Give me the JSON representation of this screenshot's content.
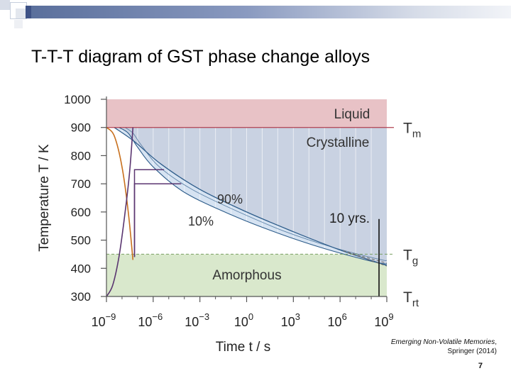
{
  "slide": {
    "title": "T-T-T diagram of GST phase change alloys",
    "citation_title": "Emerging Non-Volatile Memories",
    "citation_rest": ", Springer (2014)",
    "page_number": "7"
  },
  "colors": {
    "liquid": "#e8c2c6",
    "crystalline": "#c9d2e2",
    "crystalline_band": "#d6e3f2",
    "amorphous": "#d9e8cc",
    "tm_line": "#b04050",
    "quench_orange": "#c8701e",
    "quench_purple": "#5a3570",
    "curve_blue": "#2d5c8a",
    "axis": "#555555",
    "title_bar": "#6a7ea8"
  },
  "chart_data": {
    "type": "area",
    "xlabel": "Time t / s",
    "ylabel": "Temperature T / K",
    "xscale": "log",
    "xlim": [
      -9,
      9
    ],
    "ylim": [
      300,
      1000
    ],
    "x_ticks": [
      {
        "exp": -9,
        "base": "10",
        "sup": "−9"
      },
      {
        "exp": -6,
        "base": "10",
        "sup": "−6"
      },
      {
        "exp": -3,
        "base": "10",
        "sup": "−3"
      },
      {
        "exp": 0,
        "base": "10",
        "sup": "0"
      },
      {
        "exp": 3,
        "base": "10",
        "sup": "3"
      },
      {
        "exp": 6,
        "base": "10",
        "sup": "6"
      },
      {
        "exp": 9,
        "base": "10",
        "sup": "9"
      }
    ],
    "y_ticks": [
      300,
      400,
      500,
      600,
      700,
      800,
      900,
      1000
    ],
    "reference_lines": [
      {
        "name": "Tm",
        "base": "T",
        "sub": "m",
        "value": 900
      },
      {
        "name": "Tg",
        "base": "T",
        "sub": "g",
        "value": 450
      },
      {
        "name": "Trt",
        "base": "T",
        "sub": "rt",
        "value": 300
      }
    ],
    "regions": [
      {
        "name": "Liquid",
        "label": "Liquid",
        "y_range": [
          900,
          1000
        ]
      },
      {
        "name": "Crystalline",
        "label": "Crystalline",
        "y_range": [
          450,
          900
        ]
      },
      {
        "name": "Amorphous",
        "label": "Amorphous",
        "y_range": [
          300,
          450
        ]
      }
    ],
    "series": [
      {
        "name": "90%",
        "label": "90%",
        "points": [
          [
            -8.5,
            900
          ],
          [
            -7.2,
            850
          ],
          [
            -5.5,
            770
          ],
          [
            -3,
            680
          ],
          [
            0,
            600
          ],
          [
            3,
            530
          ],
          [
            6,
            465
          ],
          [
            9,
            410
          ]
        ]
      },
      {
        "name": "10%",
        "label": "10%",
        "points": [
          [
            -8.2,
            900
          ],
          [
            -7.6,
            880
          ],
          [
            -7,
            830
          ],
          [
            -6,
            760
          ],
          [
            -4,
            670
          ],
          [
            -1,
            590
          ],
          [
            2,
            525
          ],
          [
            5,
            470
          ],
          [
            8,
            425
          ],
          [
            9,
            415
          ]
        ]
      },
      {
        "name": "10%-inner",
        "points": [
          [
            -7.8,
            900
          ],
          [
            -7.3,
            880
          ],
          [
            -6.8,
            840
          ],
          [
            -5.6,
            760
          ],
          [
            -3.5,
            680
          ],
          [
            -0.5,
            600
          ],
          [
            2.5,
            530
          ],
          [
            5.5,
            475
          ],
          [
            8.5,
            432
          ],
          [
            9,
            428
          ]
        ]
      }
    ],
    "quench_curves": [
      {
        "name": "fast-quench",
        "points": [
          [
            -9,
            900
          ],
          [
            -8.5,
            870
          ],
          [
            -8,
            760
          ],
          [
            -7.6,
            600
          ],
          [
            -7.3,
            430
          ]
        ]
      },
      {
        "name": "slow-cool",
        "points": [
          [
            -9,
            300
          ],
          [
            -8.6,
            340
          ],
          [
            -8.2,
            440
          ],
          [
            -7.8,
            600
          ],
          [
            -7.5,
            750
          ],
          [
            -7.3,
            900
          ]
        ]
      }
    ],
    "anneal_paths": [
      {
        "name": "anneal-750K",
        "points": [
          [
            -7.2,
            750
          ],
          [
            -5.3,
            750
          ]
        ],
        "drop_to": 440
      },
      {
        "name": "anneal-700K",
        "points": [
          [
            -7.2,
            700
          ],
          [
            -4.2,
            700
          ]
        ],
        "drop_to": 440
      }
    ],
    "marker": {
      "name": "10-yrs",
      "label": "10 yrs.",
      "x": 8.5,
      "y_range": [
        300,
        575
      ]
    }
  }
}
